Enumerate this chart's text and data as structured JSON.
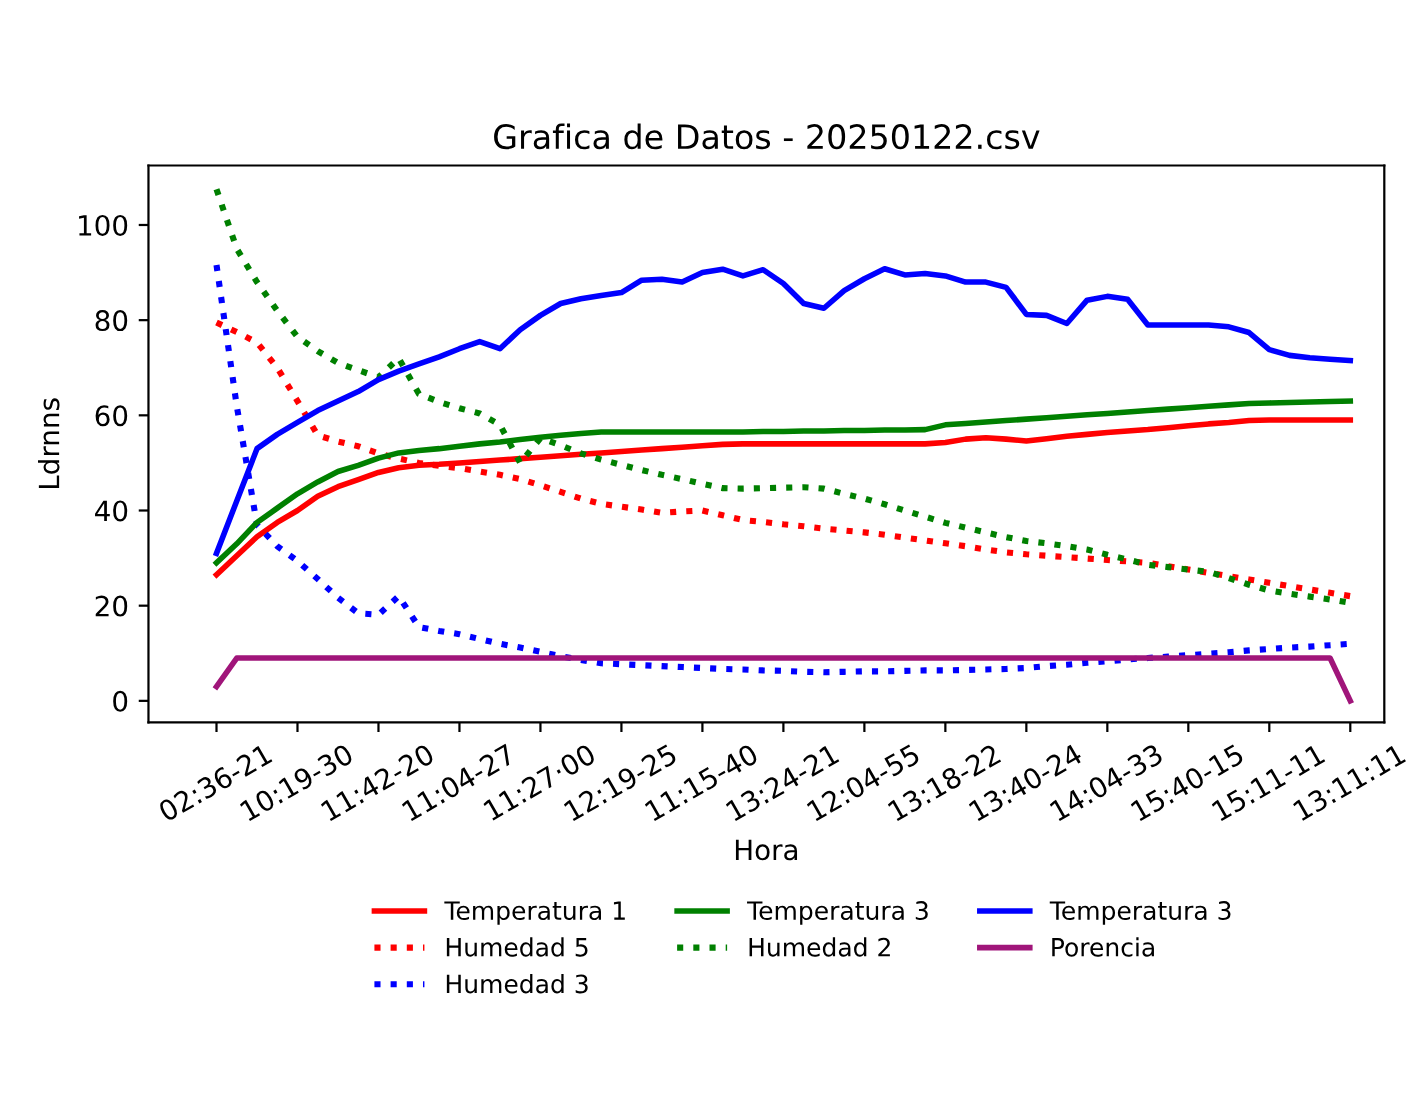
{
  "chart_data": {
    "type": "line",
    "title": "Grafica de Datos - 20250122.csv",
    "xlabel": "Hora",
    "ylabel": "Ldrnns",
    "ylim": [
      -4.5,
      112.5
    ],
    "yticks": [
      0,
      20,
      40,
      60,
      80,
      100
    ],
    "categories": [
      "02:36-21",
      null,
      null,
      null,
      "10:19-30",
      null,
      null,
      null,
      "11:42-20",
      null,
      null,
      null,
      "11:04-27",
      null,
      null,
      null,
      "11:27·00",
      null,
      null,
      null,
      "12:19-25",
      null,
      null,
      null,
      "11:15-40",
      null,
      null,
      null,
      "13:24-21",
      null,
      null,
      null,
      "12:04-55",
      null,
      null,
      null,
      "13:18-22",
      null,
      null,
      null,
      "13:40-24",
      null,
      null,
      null,
      "14:04-33",
      null,
      null,
      null,
      "15:40-15",
      null,
      null,
      null,
      "15:11-11",
      null,
      null,
      null,
      "13:11:11"
    ],
    "grid": false,
    "legend": "bottom",
    "marker": "none",
    "series": [
      {
        "name": "Temperatura 1",
        "color": "#ff0000",
        "line_style": "solid",
        "values": [
          26.5,
          30.5,
          34.5,
          37.5,
          40,
          43,
          45,
          46.5,
          48,
          49,
          49.5,
          49.7,
          50,
          50.3,
          50.6,
          50.9,
          51.2,
          51.5,
          51.8,
          52.1,
          52.4,
          52.7,
          53,
          53.3,
          53.6,
          53.9,
          54,
          54,
          54,
          54,
          54,
          54,
          54,
          54,
          54,
          54,
          54.3,
          55,
          55.3,
          55,
          54.6,
          55.1,
          55.6,
          56,
          56.4,
          56.7,
          57,
          57.4,
          57.8,
          58.2,
          58.5,
          58.9,
          59,
          59,
          59,
          59,
          59
        ]
      },
      {
        "name": "Humedad 5",
        "color": "#ff0000",
        "line_style": "dotted",
        "values": [
          79.5,
          77.5,
          75.3,
          70,
          63,
          55.8,
          54.5,
          53.5,
          52,
          50.9,
          50,
          49.4,
          48.9,
          48.2,
          47.5,
          46.6,
          45.3,
          43.9,
          42.5,
          41.4,
          40.8,
          40.2,
          39.5,
          39.8,
          40,
          39,
          38,
          37.6,
          37.1,
          36.7,
          36.2,
          35.8,
          35.4,
          34.9,
          34.3,
          33.7,
          33.1,
          32.5,
          31.8,
          31.2,
          30.8,
          30.5,
          30.2,
          29.9,
          29.6,
          29.3,
          29,
          28.3,
          27.6,
          26.9,
          26.2,
          25.5,
          24.8,
          24.1,
          23.4,
          22.7,
          22
        ]
      },
      {
        "name": "Humedad 3",
        "color": "#0000ff",
        "line_style": "dotted",
        "values": [
          91.6,
          62,
          37,
          32.5,
          29.4,
          25.6,
          21.7,
          18.4,
          18.1,
          22,
          15.5,
          14.7,
          14,
          13,
          12,
          11.2,
          10.3,
          9.4,
          8.6,
          7.9,
          7.7,
          7.5,
          7.3,
          7.1,
          6.9,
          6.7,
          6.6,
          6.4,
          6.3,
          6.1,
          6,
          6.1,
          6.2,
          6.2,
          6.3,
          6.4,
          6.4,
          6.5,
          6.6,
          6.7,
          6.9,
          7.3,
          7.6,
          8,
          8.3,
          8.7,
          9,
          9.3,
          9.6,
          9.9,
          10.2,
          10.6,
          10.9,
          11.2,
          11.4,
          11.7,
          12
        ]
      },
      {
        "name": "Temperatura 3",
        "color": "#008000",
        "line_style": "solid",
        "values": [
          29,
          33,
          37.5,
          40.5,
          43.5,
          46,
          48.2,
          49.5,
          51,
          52.1,
          52.6,
          53,
          53.5,
          54,
          54.4,
          54.9,
          55.4,
          55.8,
          56.2,
          56.5,
          56.5,
          56.5,
          56.5,
          56.5,
          56.5,
          56.5,
          56.5,
          56.6,
          56.6,
          56.7,
          56.7,
          56.8,
          56.8,
          56.9,
          56.9,
          57,
          58,
          58.3,
          58.6,
          58.9,
          59.2,
          59.5,
          59.8,
          60.1,
          60.4,
          60.7,
          61,
          61.3,
          61.6,
          61.9,
          62.2,
          62.5,
          62.6,
          62.7,
          62.8,
          62.9,
          63
        ]
      },
      {
        "name": "Humedad 2",
        "color": "#008000",
        "line_style": "dotted",
        "values": [
          107.5,
          95,
          88,
          82,
          76.5,
          73.5,
          71,
          69.5,
          68,
          72,
          64.5,
          62.8,
          61.5,
          60.4,
          58,
          50,
          55.2,
          53.7,
          52,
          50.7,
          49.6,
          48.5,
          47.5,
          46.6,
          45.6,
          44.7,
          44.6,
          44.7,
          44.8,
          44.9,
          44.6,
          43.5,
          42.5,
          41.3,
          40,
          38.7,
          37.4,
          36.4,
          35.4,
          34.4,
          33.6,
          33.1,
          32.5,
          31.8,
          30.7,
          29.7,
          28.6,
          28.1,
          27.6,
          27.1,
          25.8,
          24.4,
          23.2,
          22.5,
          21.9,
          21.3,
          20.6
        ]
      },
      {
        "name": "Temperatura 3",
        "color": "#0000ff",
        "line_style": "solid",
        "values": [
          31,
          42,
          53,
          56,
          58.5,
          61,
          63,
          65,
          67.5,
          69.3,
          70.8,
          72.3,
          74,
          75.5,
          74,
          78,
          81,
          83.5,
          84.5,
          85.2,
          85.8,
          88.4,
          88.6,
          88,
          90,
          90.7,
          89.3,
          90.6,
          87.7,
          83.5,
          82.5,
          86.2,
          88.7,
          90.8,
          89.5,
          89.8,
          89.3,
          88,
          88,
          86.9,
          81.2,
          81,
          79.3,
          84.2,
          85,
          84.4,
          79,
          79,
          79,
          79,
          78.6,
          77.4,
          73.8,
          72.6,
          72.1,
          71.8,
          71.5
        ]
      },
      {
        "name": "Porencia",
        "color": "#a0157a",
        "line_style": "solid",
        "values": [
          3,
          9,
          9,
          9,
          9,
          9,
          9,
          9,
          9,
          9,
          9,
          9,
          9,
          9,
          9,
          9,
          9,
          9,
          9,
          9,
          9,
          9,
          9,
          9,
          9,
          9,
          9,
          9,
          9,
          9,
          9,
          9,
          9,
          9,
          9,
          9,
          9,
          9,
          9,
          9,
          9,
          9,
          9,
          9,
          9,
          9,
          9,
          9,
          9,
          9,
          9,
          9,
          9,
          9,
          9,
          9,
          0
        ]
      }
    ]
  }
}
